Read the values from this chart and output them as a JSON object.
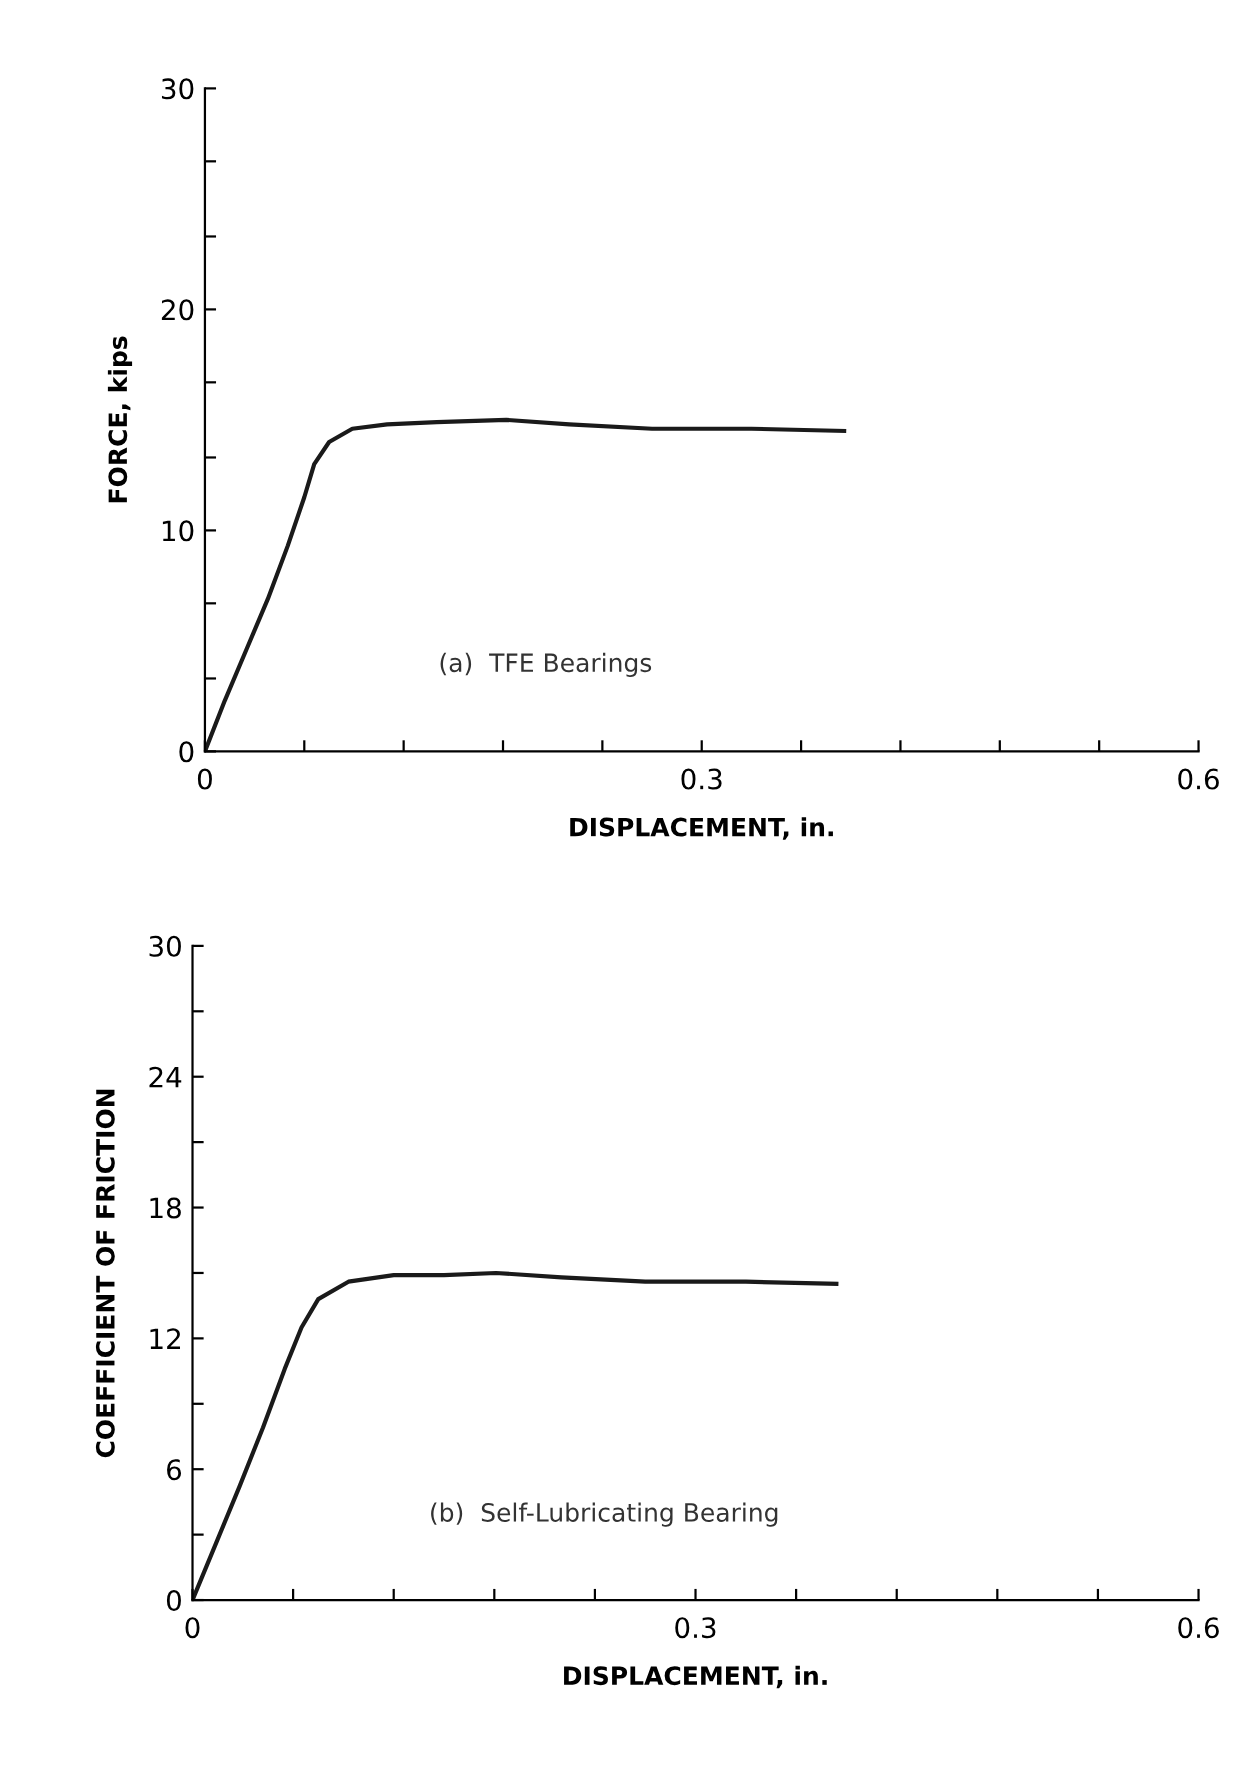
{
  "chart_data": [
    {
      "type": "line",
      "xlabel": "DISPLACEMENT, in.",
      "ylabel": "FORCE, kips",
      "annotations": [
        "(a)  TFE Bearings"
      ],
      "x": [
        0,
        0.012,
        0.025,
        0.038,
        0.05,
        0.06,
        0.066,
        0.075,
        0.089,
        0.11,
        0.14,
        0.182,
        0.22,
        0.27,
        0.33,
        0.386
      ],
      "series": [
        {
          "color": "#1a1a1a",
          "values": [
            0,
            2.3,
            4.6,
            6.9,
            9.3,
            11.5,
            13.0,
            14.0,
            14.6,
            14.8,
            14.9,
            15.0,
            14.8,
            14.6,
            14.6,
            14.5
          ]
        }
      ],
      "xlim": [
        0,
        0.6
      ],
      "ylim": [
        0,
        30
      ],
      "xticks": [
        0,
        {
          "value": 0.06,
          "label": null
        },
        {
          "value": 0.12,
          "label": null
        },
        {
          "value": 0.18,
          "label": null
        },
        {
          "value": 0.24,
          "label": null
        },
        0.3,
        {
          "value": 0.36,
          "label": null
        },
        {
          "value": 0.42,
          "label": null
        },
        {
          "value": 0.48,
          "label": null
        },
        {
          "value": 0.54,
          "label": null
        },
        0.6
      ],
      "yticks": [
        0,
        {
          "value": 3.3,
          "label": null
        },
        {
          "value": 6.7,
          "label": null
        },
        10,
        {
          "value": 13.3,
          "label": null
        },
        {
          "value": 16.7,
          "label": null
        },
        20,
        {
          "value": 23.3,
          "label": null
        },
        {
          "value": 26.7,
          "label": null
        },
        30
      ],
      "grid": false,
      "line_style": "solid",
      "marker": "none"
    },
    {
      "type": "line",
      "xlabel": "DISPLACEMENT, in.",
      "ylabel": "COEFFICIENT OF FRICTION",
      "annotations": [
        "(b)  Self-Lubricating Bearing"
      ],
      "x": [
        0,
        0.014,
        0.028,
        0.042,
        0.055,
        0.065,
        0.075,
        0.093,
        0.12,
        0.15,
        0.181,
        0.22,
        0.27,
        0.33,
        0.384
      ],
      "series": [
        {
          "color": "#1a1a1a",
          "values": [
            0,
            2.6,
            5.2,
            7.9,
            10.6,
            12.5,
            13.8,
            14.6,
            14.9,
            14.9,
            15.0,
            14.8,
            14.6,
            14.6,
            14.5
          ]
        }
      ],
      "xlim": [
        0,
        0.6
      ],
      "ylim": [
        0,
        30
      ],
      "xticks": [
        0,
        {
          "value": 0.06,
          "label": null
        },
        {
          "value": 0.12,
          "label": null
        },
        {
          "value": 0.18,
          "label": null
        },
        {
          "value": 0.24,
          "label": null
        },
        0.3,
        {
          "value": 0.36,
          "label": null
        },
        {
          "value": 0.42,
          "label": null
        },
        {
          "value": 0.48,
          "label": null
        },
        {
          "value": 0.54,
          "label": null
        },
        0.6
      ],
      "yticks": [
        0,
        {
          "value": 3,
          "label": null
        },
        6,
        {
          "value": 9,
          "label": null
        },
        12,
        {
          "value": 15,
          "label": null
        },
        18,
        {
          "value": 21,
          "label": null
        },
        24,
        {
          "value": 27,
          "label": null
        },
        30
      ],
      "grid": false,
      "line_style": "solid",
      "marker": "none"
    }
  ]
}
